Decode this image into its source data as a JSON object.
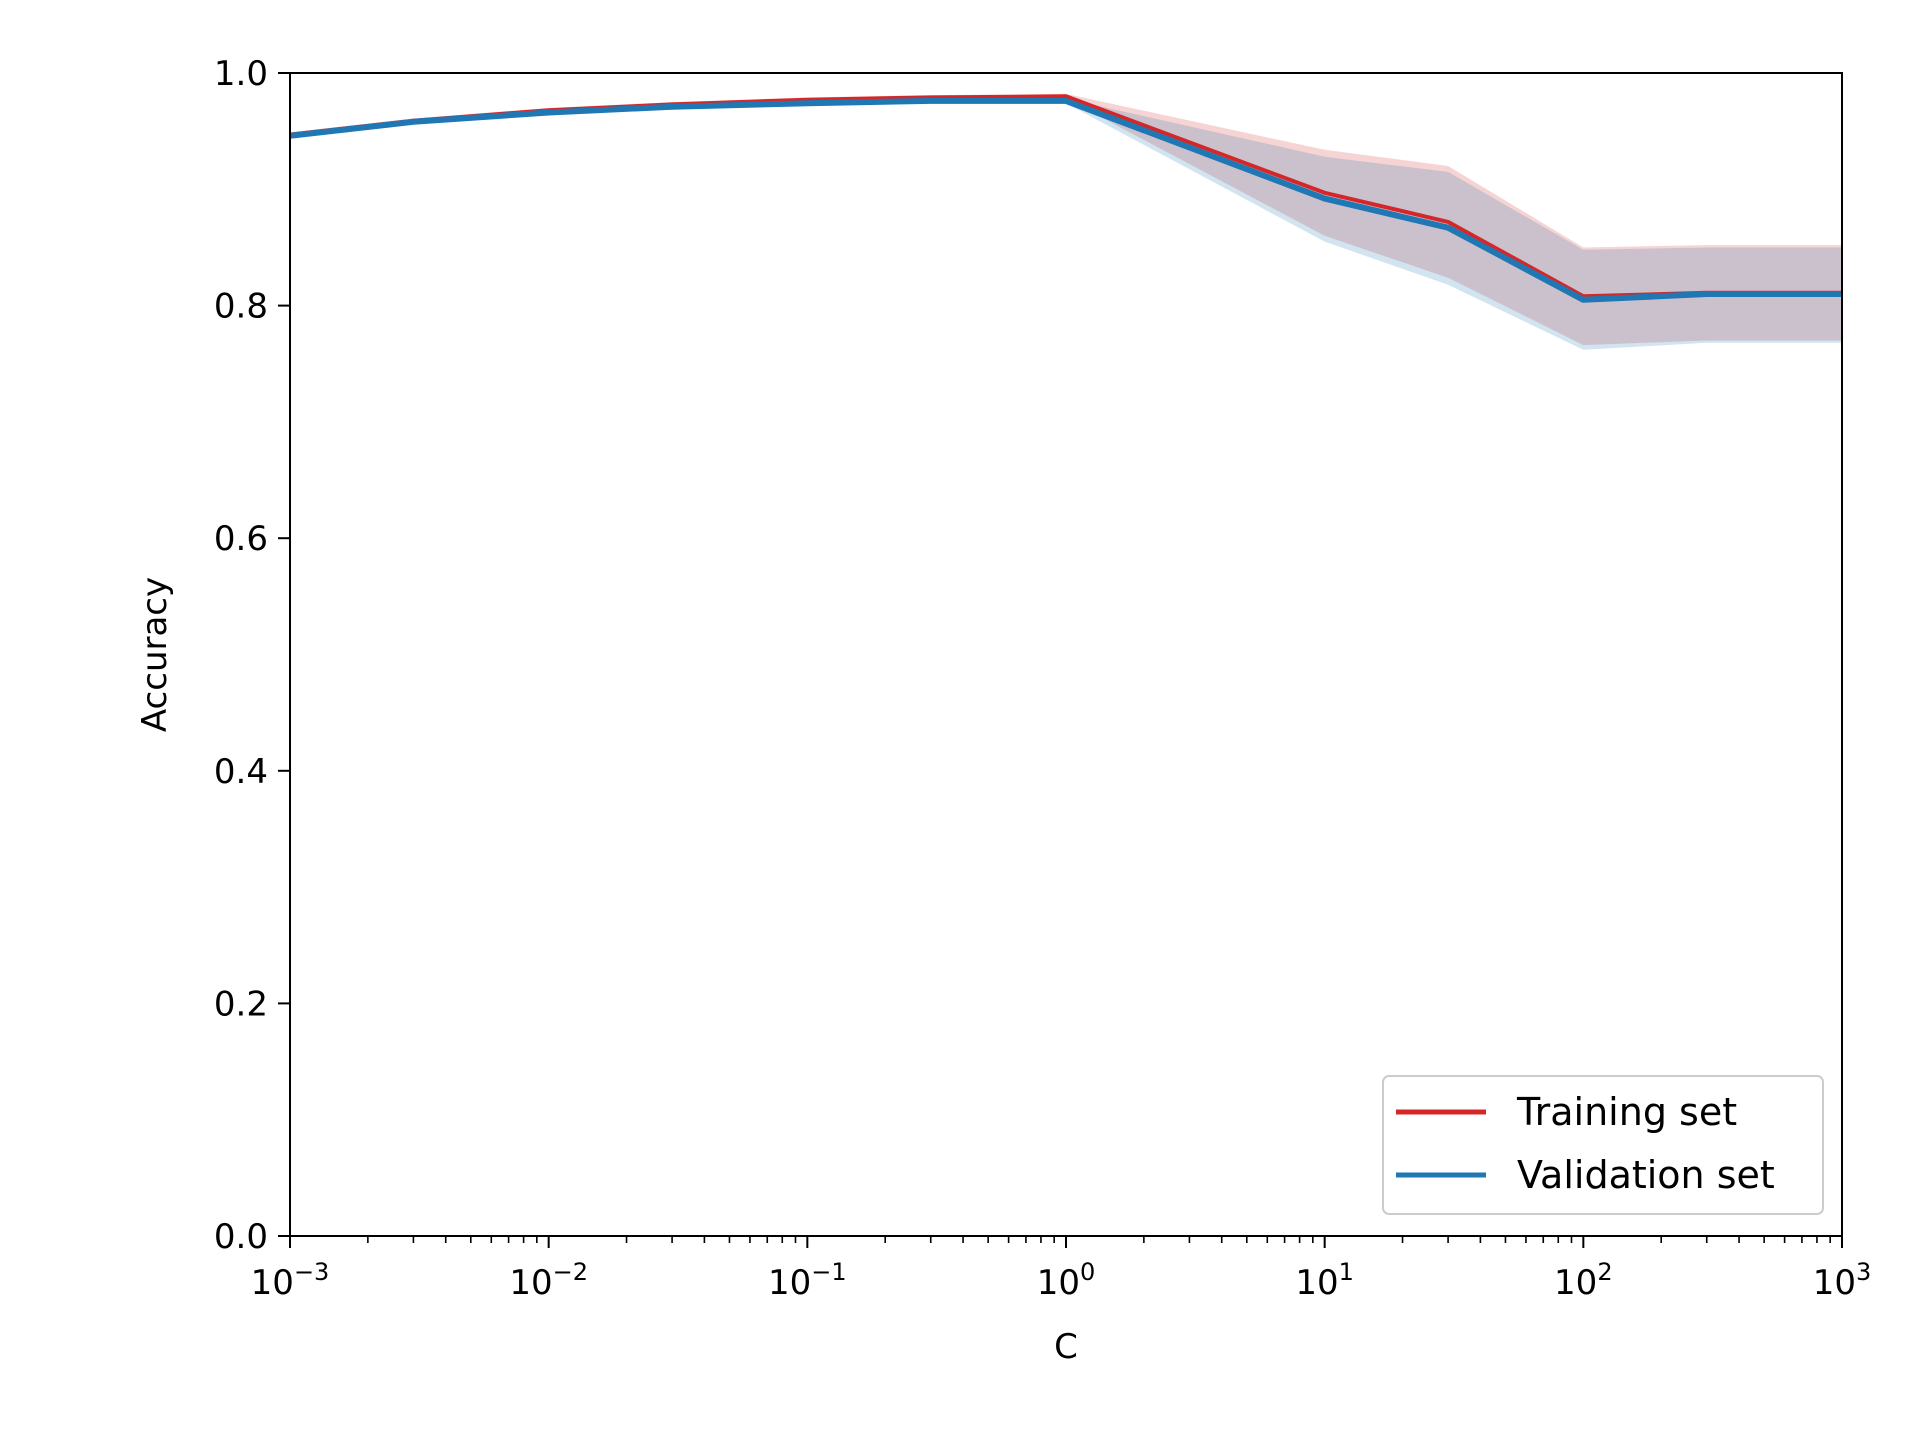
{
  "chart_data": {
    "type": "line",
    "title": "",
    "xlabel": "C",
    "ylabel": "Accuracy",
    "x_scale": "log",
    "xlim": [
      0.001,
      1000
    ],
    "ylim": [
      0.0,
      1.0
    ],
    "grid": false,
    "legend_position": "lower-right",
    "x": [
      0.001,
      0.003,
      0.01,
      0.03,
      0.1,
      0.3,
      1,
      10,
      30,
      100,
      300,
      1000
    ],
    "x_ticks": [
      {
        "value": 0.001,
        "base": "10",
        "exp": "−3"
      },
      {
        "value": 0.01,
        "base": "10",
        "exp": "−2"
      },
      {
        "value": 0.1,
        "base": "10",
        "exp": "−1"
      },
      {
        "value": 1,
        "base": "10",
        "exp": "0"
      },
      {
        "value": 10,
        "base": "10",
        "exp": "1"
      },
      {
        "value": 100,
        "base": "10",
        "exp": "2"
      },
      {
        "value": 1000,
        "base": "10",
        "exp": "3"
      }
    ],
    "y_ticks": [
      {
        "value": 0.0,
        "label": "0.0"
      },
      {
        "value": 0.2,
        "label": "0.2"
      },
      {
        "value": 0.4,
        "label": "0.4"
      },
      {
        "value": 0.6,
        "label": "0.6"
      },
      {
        "value": 0.8,
        "label": "0.8"
      },
      {
        "value": 1.0,
        "label": "1.0"
      }
    ],
    "series": [
      {
        "name": "Training set",
        "color": "#d62728",
        "values": [
          0.947,
          0.959,
          0.968,
          0.973,
          0.977,
          0.979,
          0.98,
          0.897,
          0.872,
          0.808,
          0.811,
          0.811
        ],
        "band_upper": [
          0.949,
          0.961,
          0.97,
          0.975,
          0.979,
          0.981,
          0.982,
          0.934,
          0.92,
          0.85,
          0.852,
          0.852
        ],
        "band_lower": [
          0.945,
          0.957,
          0.966,
          0.971,
          0.975,
          0.977,
          0.978,
          0.86,
          0.824,
          0.766,
          0.77,
          0.77
        ]
      },
      {
        "name": "Validation set",
        "color": "#1f77b4",
        "values": [
          0.946,
          0.958,
          0.966,
          0.971,
          0.974,
          0.976,
          0.976,
          0.892,
          0.867,
          0.805,
          0.81,
          0.81
        ],
        "band_upper": [
          0.948,
          0.96,
          0.968,
          0.973,
          0.976,
          0.978,
          0.978,
          0.928,
          0.915,
          0.848,
          0.85,
          0.85
        ],
        "band_lower": [
          0.944,
          0.956,
          0.964,
          0.969,
          0.972,
          0.974,
          0.974,
          0.855,
          0.818,
          0.762,
          0.768,
          0.768
        ]
      }
    ]
  }
}
